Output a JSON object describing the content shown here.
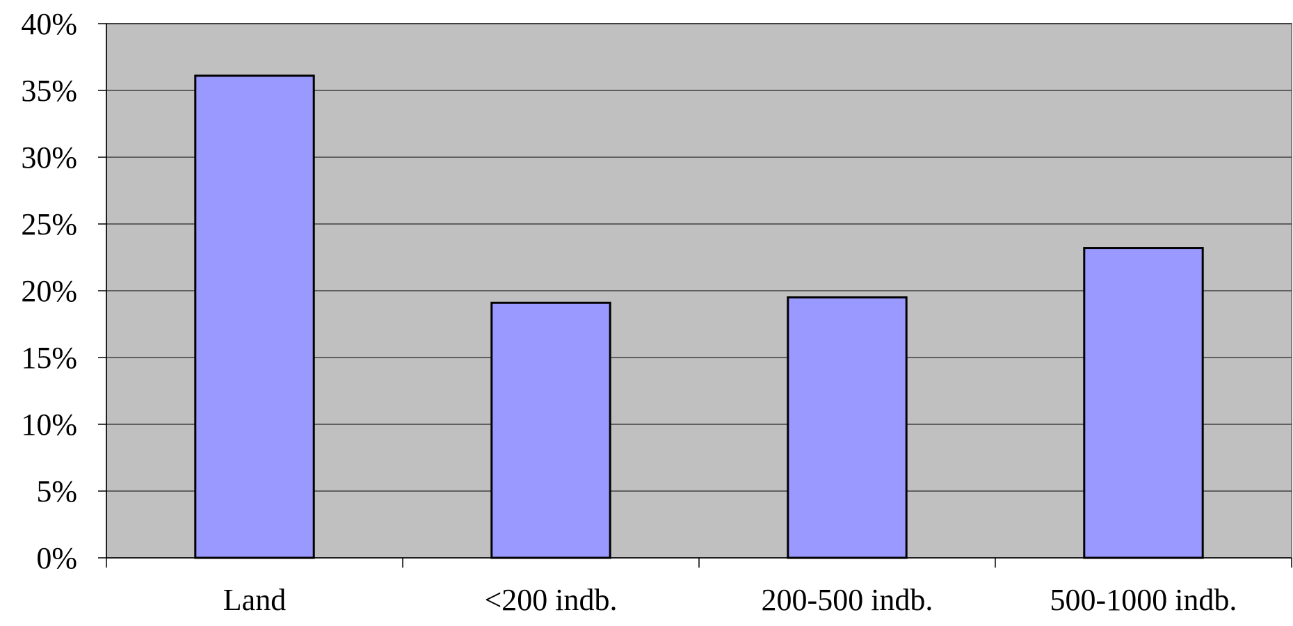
{
  "chart_data": {
    "type": "bar",
    "title": "",
    "xlabel": "",
    "ylabel": "",
    "categories": [
      "Land",
      "<200 indb.",
      "200-500 indb.",
      "500-1000 indb."
    ],
    "values": [
      36.1,
      19.1,
      19.5,
      23.2
    ],
    "ylim": [
      0,
      40
    ],
    "y_ticks": [
      0,
      5,
      10,
      15,
      20,
      25,
      30,
      35,
      40
    ],
    "y_tick_labels": [
      "0%",
      "5%",
      "10%",
      "15%",
      "20%",
      "25%",
      "30%",
      "35%",
      "40%"
    ],
    "grid": true,
    "legend": "none",
    "colors": {
      "plot_background": "#c0c0c0",
      "bar_fill": "#9999ff",
      "bar_stroke": "#000000",
      "gridline": "#000000"
    }
  }
}
